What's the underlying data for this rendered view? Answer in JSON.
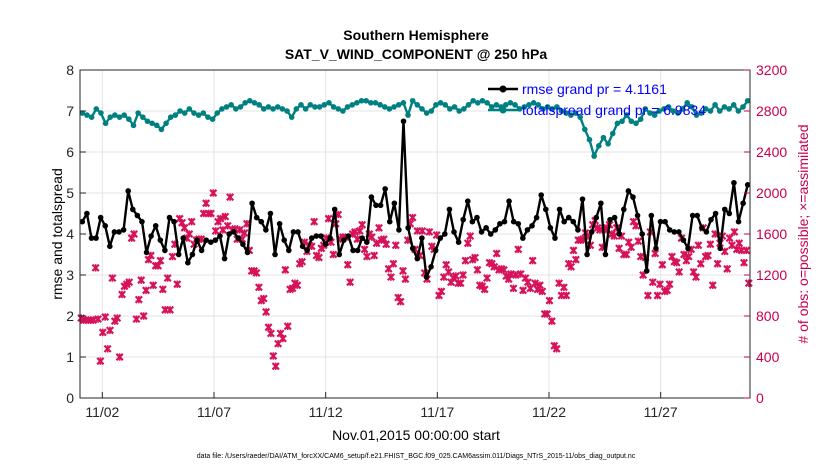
{
  "chart_data": {
    "type": "line",
    "title": "Southern Hemisphere",
    "subtitle": "SAT_V_WIND_COMPONENT @ 250 hPa",
    "xlabel": "Nov.01,2015 00:00:00 start",
    "ylabel_left": "rmse and totalspread",
    "ylabel_right": "# of obs: o=possible; ×=assimilated",
    "footnote": "data file: /Users/raeder/DAI/ATM_forcXX/CAM6_setup/f.e21.FHIST_BGC.f09_025.CAM6assim.011/Diags_NTrS_2015-11/obs_diag_output.nc",
    "x_ticks": [
      {
        "day": 2,
        "label": "11/02"
      },
      {
        "day": 7,
        "label": "11/07"
      },
      {
        "day": 12,
        "label": "11/12"
      },
      {
        "day": 17,
        "label": "11/17"
      },
      {
        "day": 22,
        "label": "11/22"
      },
      {
        "day": 27,
        "label": "11/27"
      }
    ],
    "xlim": [
      1,
      31
    ],
    "ylim_left": [
      0,
      8
    ],
    "ylim_right": [
      0,
      3200
    ],
    "y_ticks_left": [
      "0",
      "1",
      "2",
      "3",
      "4",
      "5",
      "6",
      "7",
      "8"
    ],
    "y_ticks_right": [
      "0",
      "400",
      "800",
      "1200",
      "1600",
      "2000",
      "2400",
      "2800",
      "3200"
    ],
    "grid": true,
    "legend_position": "top-right",
    "colors": {
      "rmse": "#000000",
      "totalspread": "#008080",
      "obs": "#d6125a",
      "right_axis": "#c8004f",
      "legend_text": "#0000ff"
    },
    "series": [
      {
        "name": "rmse grand pr = 4.1161",
        "axis": "left",
        "marker": "filled-circle",
        "values": [
          4.3,
          4.5,
          3.9,
          3.9,
          4.4,
          4.2,
          3.7,
          4.05,
          4.05,
          4.1,
          5.05,
          4.6,
          4.45,
          4.3,
          3.55,
          3.95,
          4.2,
          3.85,
          3.6,
          4.4,
          4.3,
          3.5,
          3.9,
          3.3,
          3.5,
          3.85,
          3.6,
          3.85,
          3.8,
          3.85,
          3.95,
          3.4,
          4.0,
          4.05,
          3.9,
          3.75,
          3.55,
          4.75,
          4.4,
          4.3,
          4.1,
          4.5,
          3.5,
          4.25,
          3.85,
          3.6,
          4.05,
          4.05,
          3.7,
          3.6,
          3.9,
          3.95,
          3.95,
          3.75,
          3.9,
          4.6,
          3.5,
          3.85,
          3.95,
          3.6,
          3.6,
          3.9,
          3.8,
          4.9,
          4.7,
          4.7,
          5.1,
          4.3,
          4.75,
          4.1,
          6.75,
          4.15,
          3.65,
          3.4,
          3.9,
          2.95,
          3.2,
          3.6,
          3.9,
          4.0,
          4.6,
          4.05,
          3.8,
          4.35,
          4.8,
          4.3,
          4.4,
          4.05,
          4.15,
          4.0,
          4.1,
          4.25,
          4.3,
          4.8,
          4.3,
          4.25,
          3.9,
          4.1,
          4.2,
          4.4,
          4.95,
          4.6,
          4.15,
          3.9,
          4.6,
          4.3,
          4.4,
          4.3,
          4.1,
          4.85,
          3.5,
          4.05,
          4.4,
          4.75,
          3.5,
          4.35,
          4.4,
          4.0,
          4.6,
          5.05,
          4.9,
          4.45,
          4.0,
          3.1,
          4.45,
          3.65,
          4.3,
          4.3,
          4.1,
          4.05,
          4.05,
          3.85,
          3.65,
          4.45,
          4.45,
          4.15,
          4.05,
          4.35,
          4.5,
          3.65,
          4.6,
          4.5,
          5.25,
          4.3,
          4.75,
          5.2
        ]
      },
      {
        "name": "totalspread grand pr = 6.9834",
        "axis": "left",
        "marker": "filled-circle",
        "values": [
          6.95,
          6.9,
          6.85,
          7.05,
          6.95,
          6.7,
          6.85,
          6.9,
          6.85,
          6.9,
          6.8,
          6.65,
          6.95,
          6.85,
          6.75,
          6.7,
          6.65,
          6.55,
          6.7,
          6.85,
          6.9,
          7.0,
          6.95,
          7.05,
          6.95,
          6.9,
          6.95,
          6.85,
          6.8,
          6.95,
          7.05,
          7.1,
          7.15,
          7.05,
          7.1,
          7.2,
          7.25,
          7.2,
          7.15,
          7.05,
          7.1,
          7.05,
          7.1,
          7.05,
          7.0,
          6.85,
          7.05,
          7.15,
          7.05,
          7.15,
          7.1,
          7.1,
          7.15,
          7.2,
          7.1,
          7.05,
          7.0,
          7.1,
          7.15,
          7.2,
          7.25,
          7.25,
          7.2,
          7.2,
          7.15,
          7.1,
          7.05,
          7.1,
          7.15,
          7.2,
          6.9,
          7.25,
          7.15,
          7.05,
          6.95,
          7.0,
          7.15,
          7.2,
          7.15,
          7.05,
          7.1,
          7.0,
          7.05,
          7.15,
          7.25,
          7.2,
          7.25,
          7.2,
          7.1,
          7.15,
          7.1,
          7.15,
          7.2,
          7.15,
          7.05,
          7.1,
          7.15,
          7.2,
          7.15,
          7.05,
          7.1,
          7.05,
          7.1,
          7.0,
          6.95,
          6.9,
          6.95,
          6.85,
          6.55,
          6.3,
          5.9,
          6.15,
          6.35,
          6.2,
          6.45,
          6.7,
          6.75,
          6.9,
          6.75,
          6.7,
          6.8,
          7.05,
          6.95,
          6.9,
          7.0,
          7.05,
          7.1,
          7.0,
          6.95,
          7.05,
          7.2,
          7.1,
          6.9,
          6.95,
          7.05,
          7.0,
          7.15,
          7.0,
          7.1,
          7.05,
          7.15,
          7.0,
          7.1,
          7.25
        ]
      },
      {
        "name": "assimilated obs",
        "axis": "right",
        "marker": "x",
        "values": [
          780,
          760,
          760,
          760,
          760,
          760,
          1270,
          770,
          360,
          640,
          790,
          480,
          660,
          1170,
          750,
          780,
          400,
          1010,
          1090,
          1110,
          1130,
          1560,
          1600,
          770,
          960,
          1150,
          800,
          1050,
          1350,
          1390,
          1100,
          1290,
          1290,
          1340,
          1060,
          860,
          1170,
          860,
          1380,
          1500,
          1110,
          1750,
          1710,
          1660,
          1560,
          1600,
          1720,
          1500,
          1540,
          1550,
          1550,
          1800,
          1900,
          1800,
          1800,
          2000,
          1630,
          1720,
          1750,
          1640,
          1770,
          1680,
          1960,
          1640,
          1650,
          1550,
          1640,
          1550,
          1610,
          1700,
          1440,
          1240,
          1240,
          1220,
          1080,
          950,
          970,
          840,
          690,
          630,
          410,
          310,
          530,
          630,
          580,
          1250,
          700,
          1060,
          1070,
          1120,
          1100,
          1310,
          1330,
          1520,
          1430,
          1490,
          1480,
          1720,
          1390,
          1370,
          1460,
          1490,
          1560,
          1750,
          1520,
          1400,
          1700,
          1790,
          1550,
          1570,
          1570,
          1300,
          1130,
          1600,
          1620,
          1550,
          1630,
          1690,
          1450,
          1380,
          1600,
          1570,
          1390,
          1510,
          1660,
          1540,
          1550,
          1500,
          1260,
          1180,
          1310,
          1490,
          980,
          940,
          1240,
          1160,
          1540,
          1700,
          1760,
          1450,
          1630,
          1390,
          1630,
          1220,
          1160,
          1620,
          1480,
          1450,
          1590,
          1000,
          1040,
          1180,
          1300,
          1230,
          1130,
          1170,
          1190,
          1120,
          1120,
          1200,
          1340,
          1510,
          1580,
          1350,
          1370,
          1250,
          1100,
          1090,
          1060,
          1170,
          1320,
          1310,
          1280,
          1410,
          1250,
          1260,
          1250,
          1190,
          1160,
          1210,
          1070,
          1200,
          1450,
          1210,
          1050,
          1170,
          1130,
          1070,
          1340,
          1120,
          1060,
          1100,
          1040,
          820,
          820,
          950,
          750,
          510,
          480,
          1120,
          1000,
          1080,
          1000,
          1310,
          1280,
          1440,
          1350,
          1540,
          1540,
          1550,
          1610,
          1580,
          1490,
          1690,
          1730,
          1660,
          1640,
          1470,
          1660,
          1640,
          1690,
          1600,
          1580,
          1660,
          1460,
          1580,
          1400,
          1400,
          1520,
          1470,
          1720,
          1680,
          1530,
          1380,
          1200,
          1370,
          1000,
          1620,
          1130,
          1410,
          1000,
          1110,
          1300,
          1040,
          1050,
          1110,
          1380,
          1330,
          1320,
          1230,
          1560,
          1400,
          1340,
          1380,
          1450,
          1230,
          1180,
          1490,
          1310,
          1660,
          1380,
          1390,
          1500,
          1100,
          1600,
          1310,
          1510,
          1580,
          1430,
          1260,
          1560,
          1490,
          1620,
          1450,
          1510,
          1440,
          1320,
          1440,
          1120
        ]
      }
    ]
  }
}
